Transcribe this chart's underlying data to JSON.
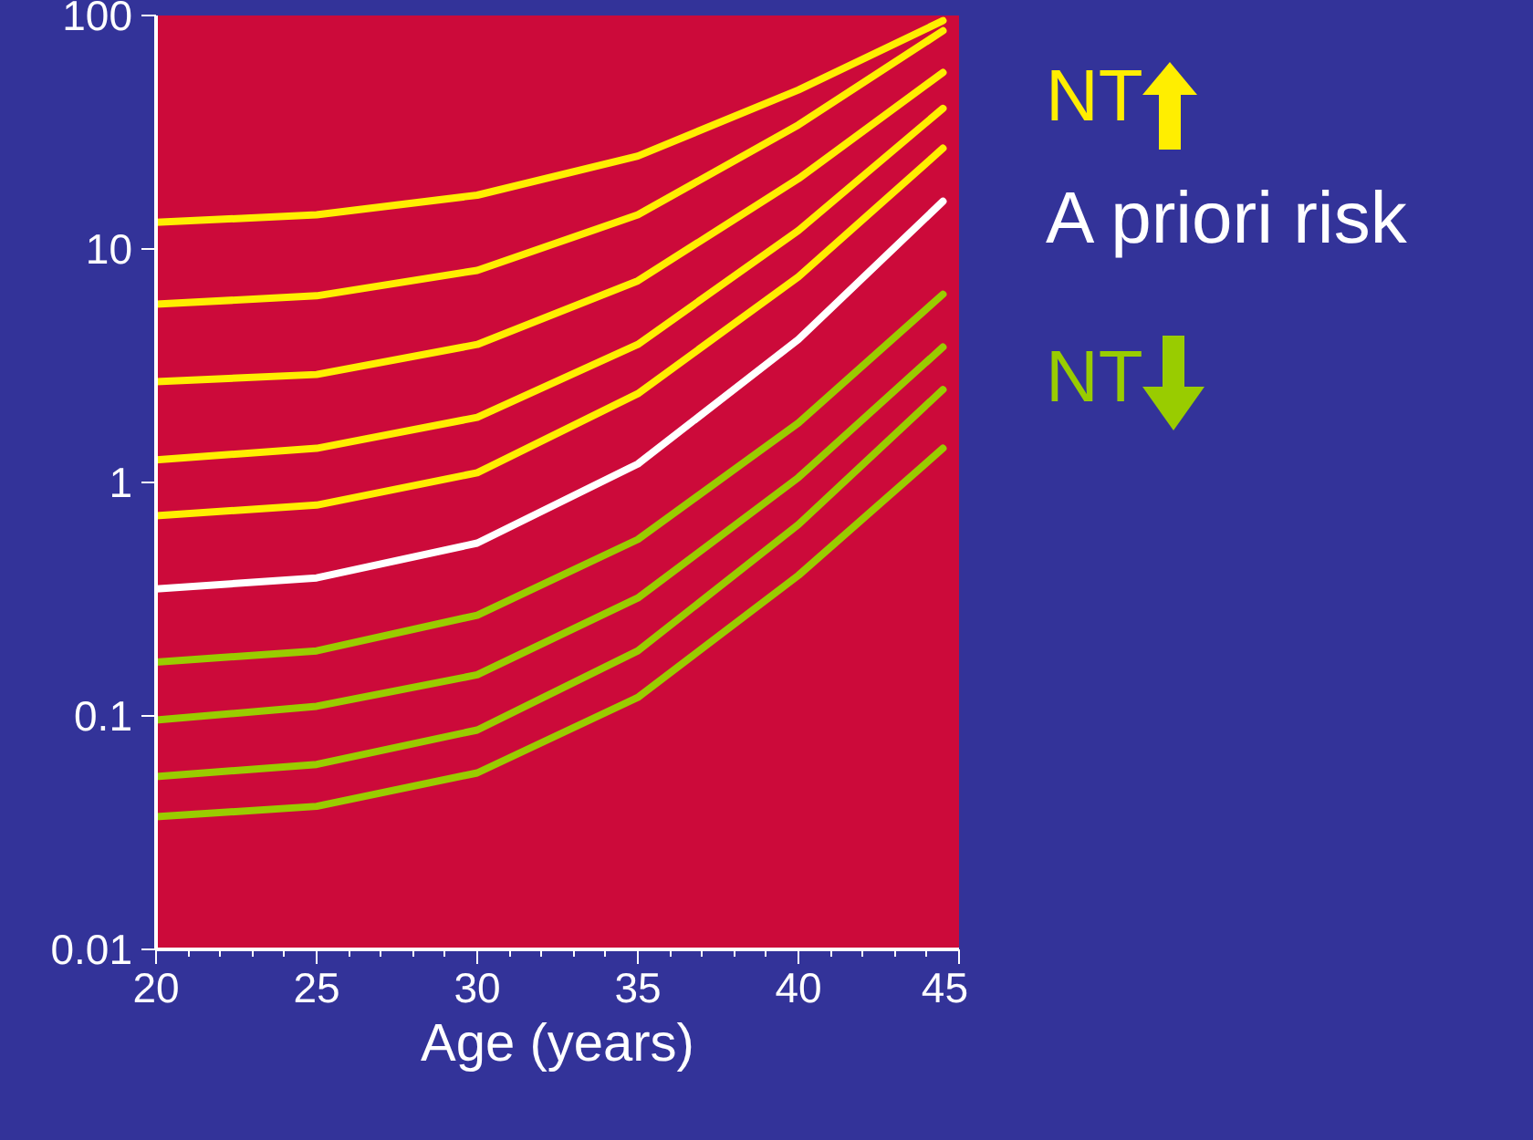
{
  "chart_data": {
    "type": "line",
    "xlabel": "Age (years)",
    "log": "y",
    "xlim": [
      20,
      45
    ],
    "xticks": [
      20,
      25,
      30,
      35,
      40,
      45
    ],
    "ylim": [
      0.01,
      100
    ],
    "yticks": [
      0.01,
      0.1,
      1,
      10,
      100
    ],
    "grid": false,
    "marker": "none",
    "line_style": "solid",
    "annotations": [
      "NT",
      "A priori risk",
      "NT"
    ],
    "series": [
      {
        "color": "#ffee00",
        "x": [
          20,
          25,
          30,
          35,
          40,
          44.5
        ],
        "values": [
          13,
          14,
          17,
          25,
          48,
          95
        ]
      },
      {
        "color": "#ffee00",
        "x": [
          20,
          25,
          30,
          35,
          40,
          44.5
        ],
        "values": [
          5.8,
          6.3,
          8.1,
          14,
          34,
          86
        ]
      },
      {
        "color": "#ffee00",
        "x": [
          20,
          25,
          30,
          35,
          40,
          44.5
        ],
        "values": [
          2.7,
          2.9,
          3.9,
          7.3,
          20,
          57
        ]
      },
      {
        "color": "#ffee00",
        "x": [
          20,
          25,
          30,
          35,
          40,
          44.5
        ],
        "values": [
          1.25,
          1.4,
          1.9,
          3.9,
          12,
          40
        ]
      },
      {
        "color": "#ffee00",
        "x": [
          20,
          25,
          30,
          35,
          40,
          44.5
        ],
        "values": [
          0.72,
          0.8,
          1.1,
          2.4,
          7.6,
          27
        ]
      },
      {
        "color": "#ffffff",
        "x": [
          20,
          25,
          30,
          35,
          40,
          44.5
        ],
        "values": [
          0.35,
          0.39,
          0.55,
          1.2,
          4.1,
          16
        ]
      },
      {
        "color": "#99cc00",
        "x": [
          20,
          25,
          30,
          35,
          40,
          44.5
        ],
        "values": [
          0.17,
          0.19,
          0.27,
          0.57,
          1.8,
          6.4
        ]
      },
      {
        "color": "#99cc00",
        "x": [
          20,
          25,
          30,
          35,
          40,
          44.5
        ],
        "values": [
          0.096,
          0.11,
          0.15,
          0.32,
          1.05,
          3.8
        ]
      },
      {
        "color": "#99cc00",
        "x": [
          20,
          25,
          30,
          35,
          40,
          44.5
        ],
        "values": [
          0.055,
          0.062,
          0.087,
          0.19,
          0.66,
          2.5
        ]
      },
      {
        "color": "#99cc00",
        "x": [
          20,
          25,
          30,
          35,
          40,
          44.5
        ],
        "values": [
          0.037,
          0.041,
          0.057,
          0.12,
          0.4,
          1.4
        ]
      }
    ]
  }
}
